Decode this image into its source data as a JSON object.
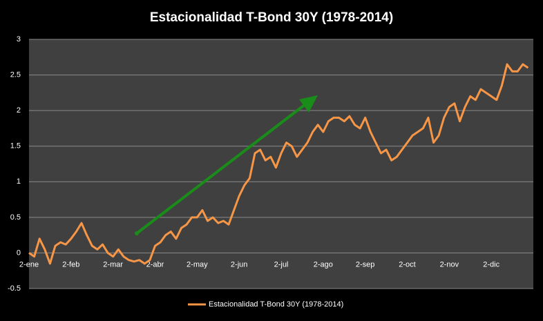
{
  "chart_data": {
    "type": "line",
    "title": "Estacionalidad T-Bond 30Y (1978-2014)",
    "categories": [
      "2-ene",
      null,
      null,
      null,
      null,
      null,
      null,
      null,
      "2-feb",
      null,
      null,
      null,
      null,
      null,
      null,
      null,
      "2-mar",
      null,
      null,
      null,
      null,
      null,
      null,
      null,
      "2-abr",
      null,
      null,
      null,
      null,
      null,
      null,
      null,
      "2-may",
      null,
      null,
      null,
      null,
      null,
      null,
      null,
      "2-jun",
      null,
      null,
      null,
      null,
      null,
      null,
      null,
      "2-jul",
      null,
      null,
      null,
      null,
      null,
      null,
      null,
      "2-ago",
      null,
      null,
      null,
      null,
      null,
      null,
      null,
      "2-sep",
      null,
      null,
      null,
      null,
      null,
      null,
      null,
      "2-oct",
      null,
      null,
      null,
      null,
      null,
      null,
      null,
      "2-nov",
      null,
      null,
      null,
      null,
      null,
      null,
      null,
      "2-dic",
      null,
      null,
      null,
      null,
      null,
      null,
      null
    ],
    "series": [
      {
        "name": "Estacionalidad T-Bond 30Y (1978-2014)",
        "color": "#f79646",
        "values": [
          0,
          -0.05,
          0.2,
          0.05,
          -0.15,
          0.1,
          0.15,
          0.12,
          0.2,
          0.3,
          0.42,
          0.25,
          0.1,
          0.05,
          0.12,
          0.0,
          -0.05,
          0.05,
          -0.05,
          -0.1,
          -0.12,
          -0.1,
          -0.15,
          -0.1,
          0.1,
          0.15,
          0.25,
          0.3,
          0.2,
          0.35,
          0.4,
          0.5,
          0.5,
          0.6,
          0.45,
          0.5,
          0.42,
          0.45,
          0.4,
          0.6,
          0.8,
          0.95,
          1.05,
          1.4,
          1.45,
          1.3,
          1.35,
          1.2,
          1.4,
          1.55,
          1.5,
          1.35,
          1.45,
          1.55,
          1.7,
          1.8,
          1.7,
          1.85,
          1.9,
          1.9,
          1.85,
          1.92,
          1.8,
          1.75,
          1.9,
          1.7,
          1.55,
          1.4,
          1.45,
          1.3,
          1.35,
          1.45,
          1.55,
          1.65,
          1.7,
          1.75,
          1.9,
          1.55,
          1.65,
          1.9,
          2.05,
          2.1,
          1.85,
          2.05,
          2.2,
          2.15,
          2.3,
          2.25,
          2.2,
          2.15,
          2.35,
          2.65,
          2.55,
          2.55,
          2.65,
          2.6
        ]
      }
    ],
    "ylim": [
      -0.5,
      3
    ],
    "yticks": [
      -0.5,
      0,
      0.5,
      1,
      1.5,
      2,
      2.5,
      3
    ],
    "grid": true
  }
}
